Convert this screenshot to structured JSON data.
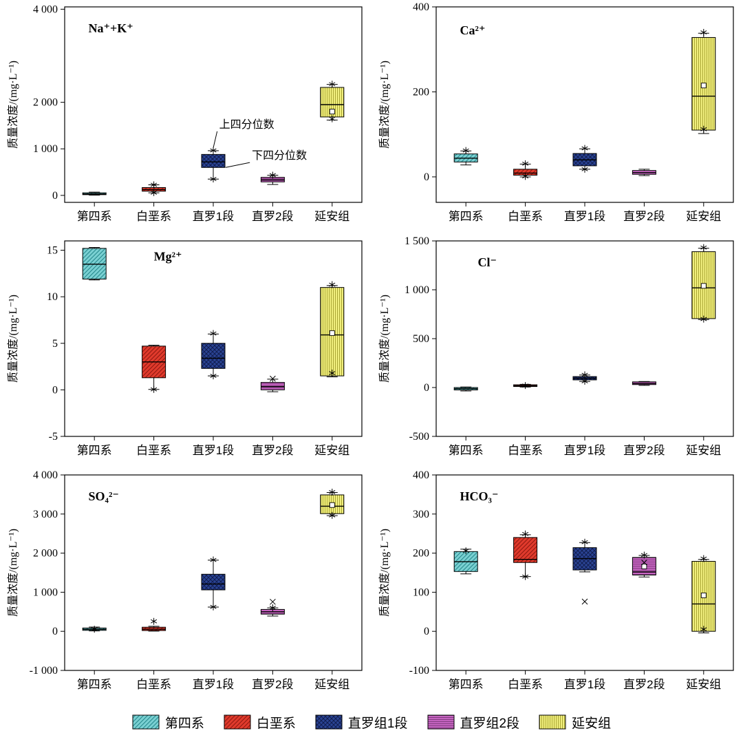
{
  "figure": {
    "background": "#ffffff"
  },
  "legend": {
    "items": [
      {
        "label": "第四系"
      },
      {
        "label": "白垩系"
      },
      {
        "label": "直罗组1段"
      },
      {
        "label": "直罗组2段"
      },
      {
        "label": "延安组"
      }
    ]
  },
  "series_styles": [
    {
      "name": "quaternary",
      "fill": "#7ad0d2",
      "hatch": "diag",
      "hatch_color": "#23868a"
    },
    {
      "name": "cretaceous",
      "fill": "#e03a2c",
      "hatch": "diag",
      "hatch_color": "#8d1710"
    },
    {
      "name": "zhiluo-1",
      "fill": "#2a4494",
      "hatch": "cross",
      "hatch_color": "#101c4e"
    },
    {
      "name": "zhiluo-2",
      "fill": "#c765c2",
      "hatch": "horiz",
      "hatch_color": "#7e3a7c"
    },
    {
      "name": "yanan",
      "fill": "#f1ef7e",
      "hatch": "vert",
      "hatch_color": "#a8a433"
    }
  ],
  "chart_data": [
    {
      "type": "box",
      "title": "Na⁺+K⁺",
      "title_fx": 0.08,
      "title_fy": 0.13,
      "ylabel": "质量浓度/(mg·L⁻¹)",
      "ylim": [
        -150,
        4050
      ],
      "yticks": [
        {
          "v": 0,
          "label": "0"
        },
        {
          "v": 1000,
          "label": "1 000"
        },
        {
          "v": 2000,
          "label": "2 000"
        },
        {
          "v": 4000,
          "label": "4 000"
        }
      ],
      "categories": [
        "第四系",
        "白垩系",
        "直罗1段",
        "直罗2段",
        "延安组"
      ],
      "boxes": [
        {
          "low": 5,
          "q1": 15,
          "med": 30,
          "q3": 55,
          "high": 70,
          "stars": []
        },
        {
          "low": 55,
          "q1": 90,
          "med": 125,
          "q3": 168,
          "high": 228,
          "stars": [
            228,
            58
          ]
        },
        {
          "low": 350,
          "q1": 600,
          "med": 720,
          "q3": 880,
          "high": 960,
          "stars": [
            965,
            352
          ]
        },
        {
          "low": 235,
          "q1": 290,
          "med": 335,
          "q3": 388,
          "high": 432,
          "stars": [
            435
          ]
        },
        {
          "low": 1620,
          "q1": 1685,
          "med": 1950,
          "q3": 2320,
          "high": 2385,
          "mean": 1800,
          "stars": [
            2390,
            1645
          ]
        }
      ],
      "annotations": [
        {
          "text": "上四分位数",
          "tfx": 0.52,
          "tv": 1450,
          "acat": 2,
          "adx": 0,
          "av": 1020
        },
        {
          "text": "下四分位数",
          "tfx": 0.63,
          "tv": 780,
          "acat": 2,
          "adx": 18,
          "av": 600
        }
      ]
    },
    {
      "type": "box",
      "title": "Ca²⁺",
      "title_fx": 0.08,
      "title_fy": 0.14,
      "ylabel": "质量浓度/(mg·L⁻¹)",
      "ylim": [
        -60,
        400
      ],
      "yticks": [
        {
          "v": 0,
          "label": "0"
        },
        {
          "v": 200,
          "label": "200"
        },
        {
          "v": 400,
          "label": "400"
        }
      ],
      "categories": [
        "第四系",
        "白垩系",
        "直罗1段",
        "直罗2段",
        "延安组"
      ],
      "boxes": [
        {
          "low": 28,
          "q1": 35,
          "med": 44,
          "q3": 54,
          "high": 61,
          "stars": [
            62
          ]
        },
        {
          "low": 0,
          "q1": 4,
          "med": 9,
          "q3": 18,
          "high": 30,
          "stars": [
            31,
            1
          ]
        },
        {
          "low": 18,
          "q1": 26,
          "med": 40,
          "q3": 55,
          "high": 66,
          "stars": [
            67,
            18
          ]
        },
        {
          "low": 3,
          "q1": 6,
          "med": 10,
          "q3": 15,
          "high": 18,
          "stars": []
        },
        {
          "low": 102,
          "q1": 110,
          "med": 190,
          "q3": 328,
          "high": 338,
          "mean": 215,
          "stars": [
            340,
            112
          ]
        }
      ]
    },
    {
      "type": "box",
      "title": "Mg²⁺",
      "title_fx": 0.3,
      "title_fy": 0.1,
      "ylabel": "质量浓度/(mg·L⁻¹)",
      "ylim": [
        -5,
        16
      ],
      "yticks": [
        {
          "v": -5,
          "label": "-5"
        },
        {
          "v": 0,
          "label": "0"
        },
        {
          "v": 5,
          "label": "5"
        },
        {
          "v": 10,
          "label": "10"
        },
        {
          "v": 15,
          "label": "15"
        }
      ],
      "categories": [
        "第四系",
        "白垩系",
        "直罗1段",
        "直罗2段",
        "延安组"
      ],
      "boxes": [
        {
          "low": 11.8,
          "q1": 11.9,
          "med": 13.5,
          "q3": 15.2,
          "high": 15.3,
          "stars": []
        },
        {
          "low": 0.05,
          "q1": 1.3,
          "med": 3.0,
          "q3": 4.7,
          "high": 4.8,
          "stars": [
            0.05
          ]
        },
        {
          "low": 1.5,
          "q1": 2.3,
          "med": 3.4,
          "q3": 5.0,
          "high": 6.0,
          "stars": [
            6.05,
            1.5
          ]
        },
        {
          "low": -0.2,
          "q1": 0.0,
          "med": 0.35,
          "q3": 0.8,
          "high": 1.15,
          "stars": [],
          "xmarks": [
            1.2
          ]
        },
        {
          "low": 1.4,
          "q1": 1.5,
          "med": 5.9,
          "q3": 11.0,
          "high": 11.2,
          "mean": 6.1,
          "stars": [
            11.3,
            1.8
          ]
        }
      ]
    },
    {
      "type": "box",
      "title": "Cl⁻",
      "title_fx": 0.14,
      "title_fy": 0.13,
      "ylabel": "质量浓度/(mg·L⁻¹)",
      "ylim": [
        -500,
        1500
      ],
      "yticks": [
        {
          "v": -500,
          "label": "-500"
        },
        {
          "v": 0,
          "label": "0"
        },
        {
          "v": 500,
          "label": "500"
        },
        {
          "v": 1000,
          "label": "1 000"
        },
        {
          "v": 1500,
          "label": "1 500"
        }
      ],
      "categories": [
        "第四系",
        "白垩系",
        "直罗1段",
        "直罗2段",
        "延安组"
      ],
      "boxes": [
        {
          "low": -35,
          "q1": -25,
          "med": -12,
          "q3": 0,
          "high": 5,
          "stars": []
        },
        {
          "low": 5,
          "q1": 10,
          "med": 18,
          "q3": 28,
          "high": 33,
          "stars": [
            20
          ]
        },
        {
          "low": 62,
          "q1": 78,
          "med": 95,
          "q3": 112,
          "high": 128,
          "stars": [
            130,
            64
          ]
        },
        {
          "low": 22,
          "q1": 30,
          "med": 42,
          "q3": 58,
          "high": 62,
          "stars": []
        },
        {
          "low": 695,
          "q1": 705,
          "med": 1020,
          "q3": 1390,
          "high": 1425,
          "mean": 1040,
          "stars": [
            1432,
            700
          ]
        }
      ]
    },
    {
      "type": "box",
      "title": "SO₄²⁻",
      "title_fx": 0.08,
      "title_fy": 0.13,
      "ylabel": "质量浓度/(mg·L⁻¹)",
      "ylim": [
        -1000,
        4000
      ],
      "yticks": [
        {
          "v": -1000,
          "label": "-1 000"
        },
        {
          "v": 0,
          "label": "0"
        },
        {
          "v": 1000,
          "label": "1 000"
        },
        {
          "v": 2000,
          "label": "2 000"
        },
        {
          "v": 3000,
          "label": "3 000"
        },
        {
          "v": 4000,
          "label": "4 000"
        }
      ],
      "categories": [
        "第四系",
        "白垩系",
        "直罗1段",
        "直罗2段",
        "延安组"
      ],
      "boxes": [
        {
          "low": 10,
          "q1": 25,
          "med": 50,
          "q3": 85,
          "high": 110,
          "stars": [
            55
          ]
        },
        {
          "low": 5,
          "q1": 20,
          "med": 55,
          "q3": 105,
          "high": 130,
          "stars": [
            255
          ]
        },
        {
          "low": 620,
          "q1": 1060,
          "med": 1210,
          "q3": 1460,
          "high": 1820,
          "stars": [
            1825,
            625
          ]
        },
        {
          "low": 390,
          "q1": 440,
          "med": 500,
          "q3": 560,
          "high": 600,
          "stars": [
            602
          ],
          "xmarks": [
            755
          ]
        },
        {
          "low": 2960,
          "q1": 3010,
          "med": 3200,
          "q3": 3490,
          "high": 3550,
          "mean": 3230,
          "stars": [
            3560,
            2965
          ]
        }
      ]
    },
    {
      "type": "box",
      "title": "HCO₃⁻",
      "title_fx": 0.08,
      "title_fy": 0.13,
      "ylabel": "质量浓度/(mg·L⁻¹)",
      "ylim": [
        -100,
        400
      ],
      "yticks": [
        {
          "v": -100,
          "label": "-100"
        },
        {
          "v": 0,
          "label": "0"
        },
        {
          "v": 100,
          "label": "100"
        },
        {
          "v": 200,
          "label": "200"
        },
        {
          "v": 300,
          "label": "300"
        },
        {
          "v": 400,
          "label": "400"
        }
      ],
      "categories": [
        "第四系",
        "白垩系",
        "直罗1段",
        "直罗2段",
        "延安组"
      ],
      "boxes": [
        {
          "low": 147,
          "q1": 153,
          "med": 178,
          "q3": 204,
          "high": 210,
          "stars": [
            206
          ]
        },
        {
          "low": 140,
          "q1": 176,
          "med": 184,
          "q3": 240,
          "high": 247,
          "stars": [
            249,
            140
          ]
        },
        {
          "low": 152,
          "q1": 157,
          "med": 186,
          "q3": 214,
          "high": 227,
          "stars": [
            228
          ],
          "xmarks": [
            76
          ]
        },
        {
          "low": 139,
          "q1": 144,
          "med": 152,
          "q3": 189,
          "high": 194,
          "mean": 166,
          "stars": [
            195
          ],
          "xmarks": [
            176
          ]
        },
        {
          "low": -4,
          "q1": 0,
          "med": 70,
          "q3": 179,
          "high": 184,
          "mean": 92,
          "stars": [
            186,
            5
          ]
        }
      ]
    }
  ]
}
